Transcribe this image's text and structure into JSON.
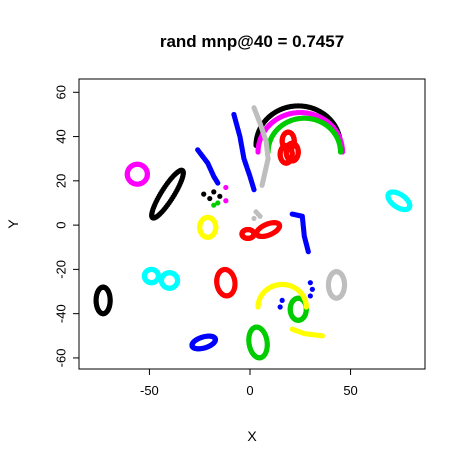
{
  "chart_data": {
    "type": "scatter",
    "title": "rand mnp@40 = 0.7457",
    "xlabel": "X",
    "ylabel": "Y",
    "xlim": [
      -85,
      87
    ],
    "ylim": [
      -65,
      66
    ],
    "xticks": [
      -50,
      0,
      50
    ],
    "yticks": [
      -60,
      -40,
      -20,
      0,
      20,
      40,
      60
    ],
    "xtick_labels": [
      "-50",
      "0",
      "50"
    ],
    "ytick_labels": [
      "-60",
      "-40",
      "-20",
      "0",
      "20",
      "40",
      "60"
    ],
    "grid": false,
    "legend": "none",
    "series": [
      {
        "color": "#000000",
        "clusters": [
          {
            "shape": "arc",
            "cx": 24,
            "cy": 36,
            "r": 21,
            "a0": 175,
            "a1": 355
          },
          {
            "shape": "ellipse",
            "cx": -41,
            "cy": 14,
            "rx": 13,
            "ry": 3,
            "rot": 55
          },
          {
            "shape": "ellipse",
            "cx": -73,
            "cy": -34,
            "rx": 3.5,
            "ry": 6,
            "rot": 0
          },
          {
            "shape": "points",
            "pts": [
              [
                -23,
                14
              ],
              [
                -20,
                12
              ],
              [
                -18,
                15
              ],
              [
                -15,
                13
              ]
            ]
          }
        ]
      },
      {
        "color": "#ff00ff",
        "clusters": [
          {
            "shape": "arc",
            "cx": 25,
            "cy": 33,
            "r": 21,
            "a0": 175,
            "a1": 350
          },
          {
            "shape": "ellipse",
            "cx": -56,
            "cy": 23,
            "rx": 5,
            "ry": 4.5,
            "rot": 0
          },
          {
            "shape": "points",
            "pts": [
              [
                -12,
                17
              ],
              [
                -12,
                11
              ]
            ]
          }
        ]
      },
      {
        "color": "#00cc00",
        "clusters": [
          {
            "shape": "arc",
            "cx": 27,
            "cy": 33,
            "r": 18,
            "a0": 200,
            "a1": 345
          },
          {
            "shape": "ellipse",
            "cx": 4,
            "cy": -53,
            "rx": 4.5,
            "ry": 7,
            "rot": 10
          },
          {
            "shape": "ellipse",
            "cx": 24,
            "cy": -38,
            "rx": 4,
            "ry": 5,
            "rot": 0
          },
          {
            "shape": "points",
            "pts": [
              [
                -18,
                9
              ],
              [
                -16,
                10
              ]
            ]
          }
        ]
      },
      {
        "color": "#ff0000",
        "clusters": [
          {
            "shape": "ellipse",
            "cx": 19,
            "cy": 38,
            "rx": 3,
            "ry": 4,
            "rot": 0
          },
          {
            "shape": "ellipse",
            "cx": 18,
            "cy": 32,
            "rx": 3,
            "ry": 4,
            "rot": 0
          },
          {
            "shape": "ellipse",
            "cx": 21,
            "cy": 33,
            "rx": 3,
            "ry": 4,
            "rot": 0
          },
          {
            "shape": "ellipse",
            "cx": -12,
            "cy": -26,
            "rx": 4.5,
            "ry": 6,
            "rot": 10
          },
          {
            "shape": "ellipse",
            "cx": 9,
            "cy": -2,
            "rx": 6,
            "ry": 2.5,
            "rot": 20
          },
          {
            "shape": "ellipse",
            "cx": -1,
            "cy": -4,
            "rx": 3,
            "ry": 2,
            "rot": 0
          }
        ]
      },
      {
        "color": "#0000ff",
        "clusters": [
          {
            "shape": "curve",
            "pts": [
              [
                -8,
                50
              ],
              [
                -5,
                40
              ],
              [
                -3,
                30
              ],
              [
                0,
                22
              ],
              [
                2,
                16
              ]
            ]
          },
          {
            "shape": "curve",
            "pts": [
              [
                -26,
                34
              ],
              [
                -21,
                28
              ],
              [
                -18,
                22
              ],
              [
                -16,
                19
              ]
            ]
          },
          {
            "shape": "curve",
            "pts": [
              [
                21,
                5
              ],
              [
                26,
                4
              ],
              [
                27,
                -5
              ],
              [
                29,
                -12
              ]
            ]
          },
          {
            "shape": "ellipse",
            "cx": -23,
            "cy": -53,
            "rx": 6,
            "ry": 2.5,
            "rot": 15
          },
          {
            "shape": "points",
            "pts": [
              [
                15,
                -37
              ],
              [
                16,
                -34
              ],
              [
                30,
                -26
              ],
              [
                31,
                -29
              ],
              [
                30,
                -32
              ]
            ]
          }
        ]
      },
      {
        "color": "#bebebe",
        "clusters": [
          {
            "shape": "curve",
            "pts": [
              [
                2,
                53
              ],
              [
                5,
                46
              ],
              [
                8,
                38
              ],
              [
                9,
                30
              ],
              [
                7,
                22
              ],
              [
                6,
                18
              ]
            ]
          },
          {
            "shape": "ellipse",
            "cx": 43,
            "cy": -27,
            "rx": 4,
            "ry": 6,
            "rot": 0
          },
          {
            "shape": "points",
            "pts": [
              [
                4,
                5
              ],
              [
                2,
                3
              ],
              [
                5,
                4
              ],
              [
                3,
                6
              ]
            ]
          }
        ]
      },
      {
        "color": "#ffff00",
        "clusters": [
          {
            "shape": "ellipse",
            "cx": -21,
            "cy": -1,
            "rx": 4,
            "ry": 4.5,
            "rot": 0
          },
          {
            "shape": "arc",
            "cx": 16,
            "cy": -37,
            "r": 12,
            "a0": 55,
            "a1": 160
          },
          {
            "shape": "curve",
            "pts": [
              [
                36,
                -50
              ],
              [
                27,
                -49
              ],
              [
                21,
                -47
              ]
            ]
          }
        ]
      },
      {
        "color": "#00ffff",
        "clusters": [
          {
            "shape": "ellipse",
            "cx": -49,
            "cy": -23,
            "rx": 3.5,
            "ry": 3,
            "rot": 0
          },
          {
            "shape": "ellipse",
            "cx": -40,
            "cy": -25,
            "rx": 4,
            "ry": 3.5,
            "rot": 0
          },
          {
            "shape": "ellipse",
            "cx": 74,
            "cy": 11,
            "rx": 6,
            "ry": 3,
            "rot": -30
          }
        ]
      }
    ]
  }
}
